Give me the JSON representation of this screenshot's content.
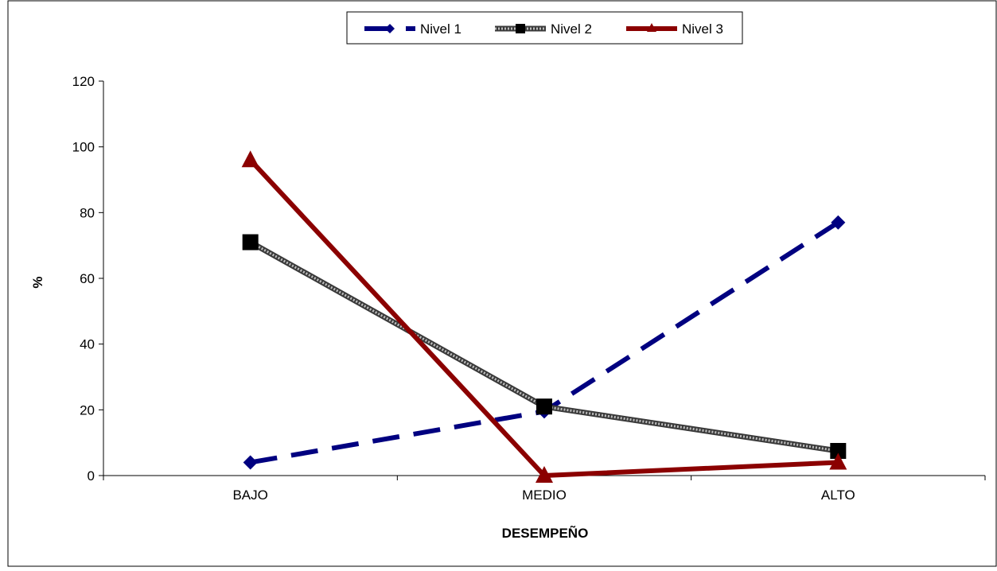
{
  "chart_data": {
    "type": "line",
    "title": "",
    "xlabel": "DESEMPEÑO",
    "ylabel": "%",
    "categories": [
      "BAJO",
      "MEDIO",
      "ALTO"
    ],
    "ylim": [
      0,
      120
    ],
    "yticks": [
      0,
      20,
      40,
      60,
      80,
      100,
      120
    ],
    "grid": false,
    "legend_position": "top-center",
    "series": [
      {
        "name": "Nivel 1",
        "values": [
          4,
          19.5,
          77
        ],
        "color": "#000080",
        "marker": "diamond",
        "line_style": "dashed"
      },
      {
        "name": "Nivel 2",
        "values": [
          71,
          21,
          7.5
        ],
        "color": "#555555",
        "marker": "square",
        "line_style": "dotted-thick"
      },
      {
        "name": "Nivel 3",
        "values": [
          96,
          0,
          4
        ],
        "color": "#8B0000",
        "marker": "triangle",
        "line_style": "solid"
      }
    ]
  }
}
